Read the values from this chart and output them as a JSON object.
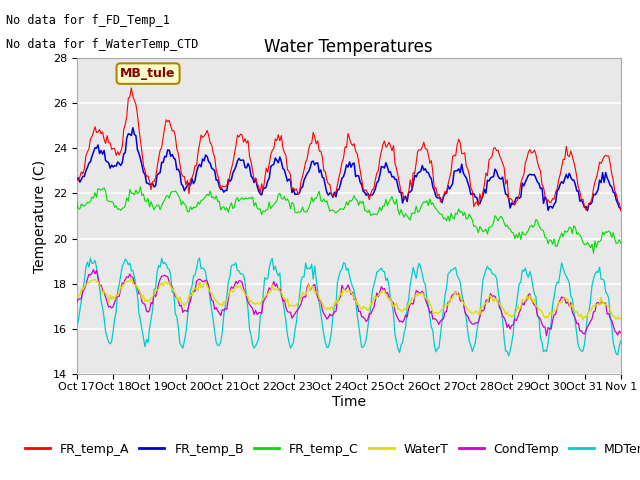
{
  "title": "Water Temperatures",
  "xlabel": "Time",
  "ylabel": "Temperature (C)",
  "ylim": [
    14,
    28
  ],
  "yticks": [
    14,
    16,
    18,
    20,
    22,
    24,
    26,
    28
  ],
  "annotations": [
    "No data for f_FD_Temp_1",
    "No data for f_WaterTemp_CTD"
  ],
  "mb_tule_label": "MB_tule",
  "x_tick_labels": [
    "Oct 17",
    "Oct 18",
    "Oct 19",
    "Oct 20",
    "Oct 21",
    "Oct 22",
    "Oct 23",
    "Oct 24",
    "Oct 25",
    "Oct 26",
    "Oct 27",
    "Oct 28",
    "Oct 29",
    "Oct 30",
    "Oct 31",
    "Nov 1"
  ],
  "legend_entries": [
    "FR_temp_A",
    "FR_temp_B",
    "FR_temp_C",
    "WaterT",
    "CondTemp",
    "MDTemp_A"
  ],
  "legend_colors": [
    "#ff0000",
    "#0000dd",
    "#00dd00",
    "#dddd00",
    "#cc00cc",
    "#00cccc"
  ],
  "background_color": "#ffffff",
  "plot_bg_color": "#e8e8e8",
  "grid_color": "#ffffff",
  "title_fontsize": 12,
  "axis_fontsize": 10,
  "tick_fontsize": 8,
  "legend_fontsize": 9
}
